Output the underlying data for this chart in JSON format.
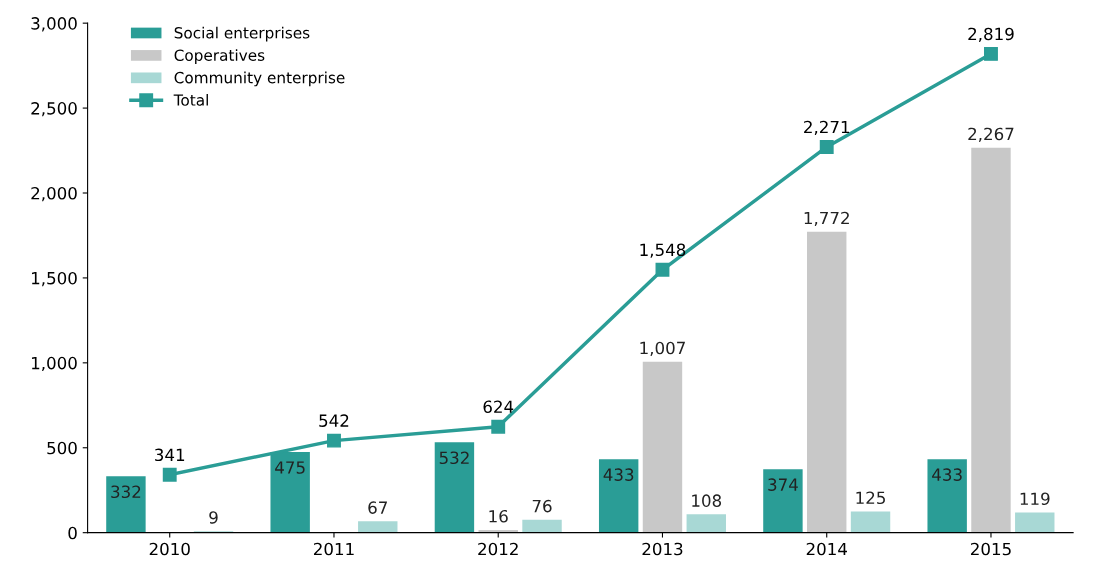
{
  "chart_data": {
    "type": "bar",
    "categories": [
      "2010",
      "2011",
      "2012",
      "2013",
      "2014",
      "2015"
    ],
    "series": [
      {
        "name": "Social enterprises",
        "color": "#2a9d96",
        "values": [
          332,
          475,
          532,
          433,
          374,
          433
        ],
        "value_labels": [
          "332",
          "475",
          "532",
          "433",
          "374",
          "433"
        ]
      },
      {
        "name": "Coperatives",
        "color": "#c8c8c8",
        "values": [
          null,
          null,
          16,
          1007,
          1772,
          2267
        ],
        "value_labels": [
          null,
          null,
          "16",
          "1,007",
          "1,772",
          "2,267"
        ]
      },
      {
        "name": "Community enterprise",
        "color": "#a8d8d5",
        "values": [
          9,
          67,
          76,
          108,
          125,
          119
        ],
        "value_labels": [
          "9",
          "67",
          "76",
          "108",
          "125",
          "119"
        ]
      },
      {
        "name": "Total",
        "type": "line",
        "color": "#2a9d96",
        "marker": "square",
        "values": [
          341,
          542,
          624,
          1548,
          2271,
          2819
        ],
        "value_labels": [
          "341",
          "542",
          "624",
          "1,548",
          "2,271",
          "2,819"
        ]
      }
    ],
    "ylim": [
      0,
      3000
    ],
    "yticks": [
      0,
      500,
      {
        "value": 1000,
        "label": "1,000"
      },
      {
        "value": 1500,
        "label": "1,500"
      },
      {
        "value": 2000,
        "label": "2,000"
      },
      {
        "value": 2500,
        "label": "2,500"
      },
      {
        "value": 3000,
        "label": "3,000"
      }
    ],
    "grid": false,
    "legend": "top left"
  }
}
